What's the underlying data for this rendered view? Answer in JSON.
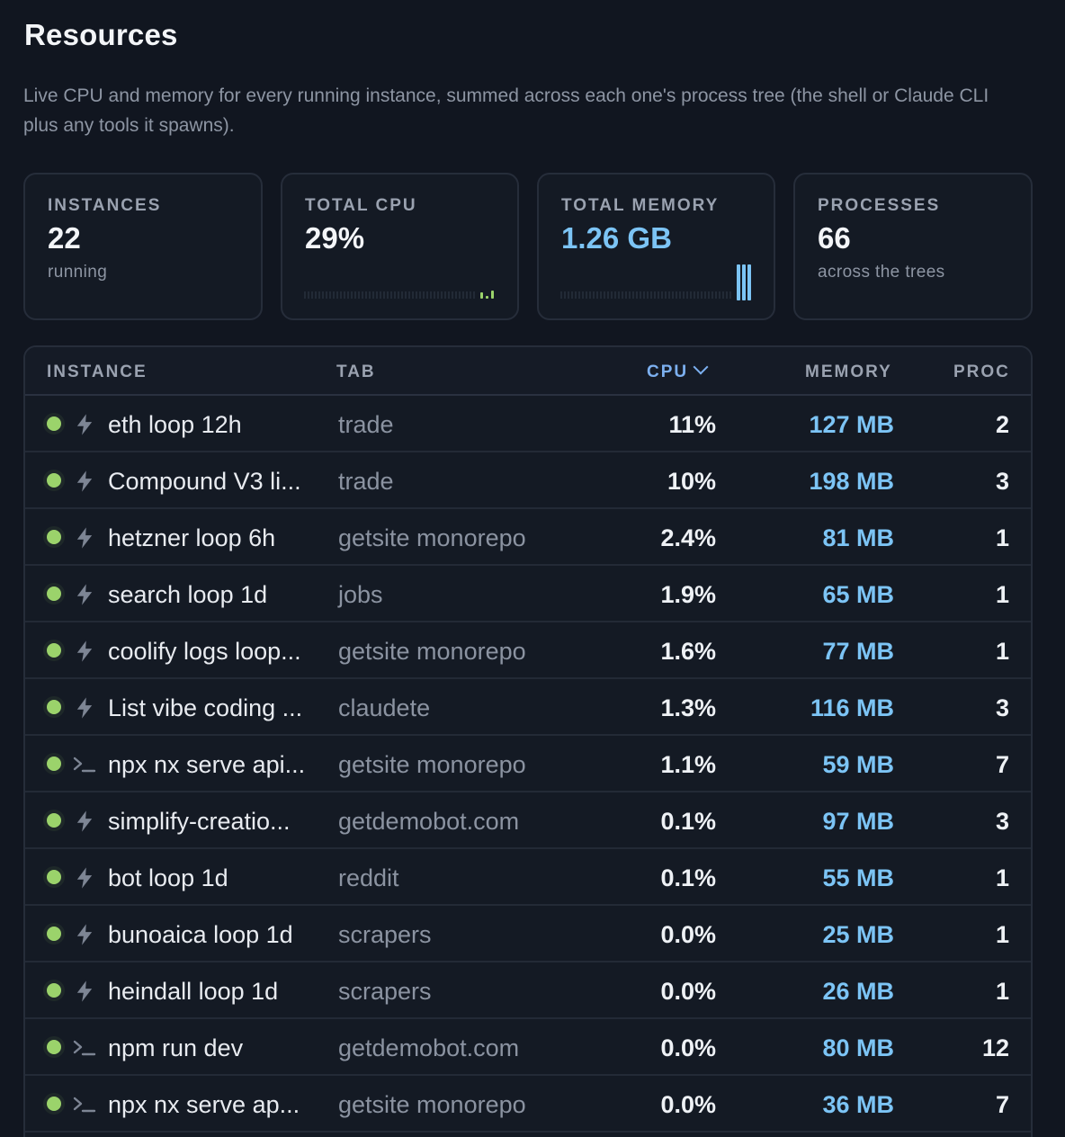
{
  "header": {
    "title": "Resources",
    "description": "Live CPU and memory for every running instance, summed across each one's process tree (the shell or Claude CLI plus any tools it spawns)."
  },
  "cards": {
    "instances": {
      "label": "INSTANCES",
      "value": "22",
      "sub": "running"
    },
    "cpu": {
      "label": "TOTAL CPU",
      "value": "29%"
    },
    "memory": {
      "label": "TOTAL MEMORY",
      "value": "1.26 GB"
    },
    "processes": {
      "label": "PROCESSES",
      "value": "66",
      "sub": "across the trees"
    }
  },
  "colors": {
    "accent_blue": "#7cc4f5",
    "status_green": "#9bd36b",
    "background": "#111620"
  },
  "table": {
    "columns": {
      "instance": "INSTANCE",
      "tab": "TAB",
      "cpu": "CPU",
      "memory": "MEMORY",
      "proc": "PROC"
    },
    "sort": {
      "column": "cpu",
      "direction": "desc",
      "icon": "chevron-down-icon"
    },
    "rows": [
      {
        "icon": "bolt-icon",
        "name": "eth loop 12h",
        "tab": "trade",
        "cpu": "11%",
        "memory": "127 MB",
        "proc": "2"
      },
      {
        "icon": "bolt-icon",
        "name": "Compound V3 li...",
        "tab": "trade",
        "cpu": "10%",
        "memory": "198 MB",
        "proc": "3"
      },
      {
        "icon": "bolt-icon",
        "name": "hetzner loop 6h",
        "tab": "getsite monorepo",
        "cpu": "2.4%",
        "memory": "81 MB",
        "proc": "1"
      },
      {
        "icon": "bolt-icon",
        "name": "search loop 1d",
        "tab": "jobs",
        "cpu": "1.9%",
        "memory": "65 MB",
        "proc": "1"
      },
      {
        "icon": "bolt-icon",
        "name": "coolify logs loop...",
        "tab": "getsite monorepo",
        "cpu": "1.6%",
        "memory": "77 MB",
        "proc": "1"
      },
      {
        "icon": "bolt-icon",
        "name": "List vibe coding ...",
        "tab": "claudete",
        "cpu": "1.3%",
        "memory": "116 MB",
        "proc": "3"
      },
      {
        "icon": "terminal-icon",
        "name": "npx nx serve api...",
        "tab": "getsite monorepo",
        "cpu": "1.1%",
        "memory": "59 MB",
        "proc": "7"
      },
      {
        "icon": "bolt-icon",
        "name": "simplify-creatio...",
        "tab": "getdemobot.com",
        "cpu": "0.1%",
        "memory": "97 MB",
        "proc": "3"
      },
      {
        "icon": "bolt-icon",
        "name": "bot loop 1d",
        "tab": "reddit",
        "cpu": "0.1%",
        "memory": "55 MB",
        "proc": "1"
      },
      {
        "icon": "bolt-icon",
        "name": "bunoaica loop 1d",
        "tab": "scrapers",
        "cpu": "0.0%",
        "memory": "25 MB",
        "proc": "1"
      },
      {
        "icon": "bolt-icon",
        "name": "heindall loop 1d",
        "tab": "scrapers",
        "cpu": "0.0%",
        "memory": "26 MB",
        "proc": "1"
      },
      {
        "icon": "terminal-icon",
        "name": "npm run dev",
        "tab": "getdemobot.com",
        "cpu": "0.0%",
        "memory": "80 MB",
        "proc": "12"
      },
      {
        "icon": "terminal-icon",
        "name": "npx nx serve ap...",
        "tab": "getsite monorepo",
        "cpu": "0.0%",
        "memory": "36 MB",
        "proc": "7"
      }
    ]
  }
}
